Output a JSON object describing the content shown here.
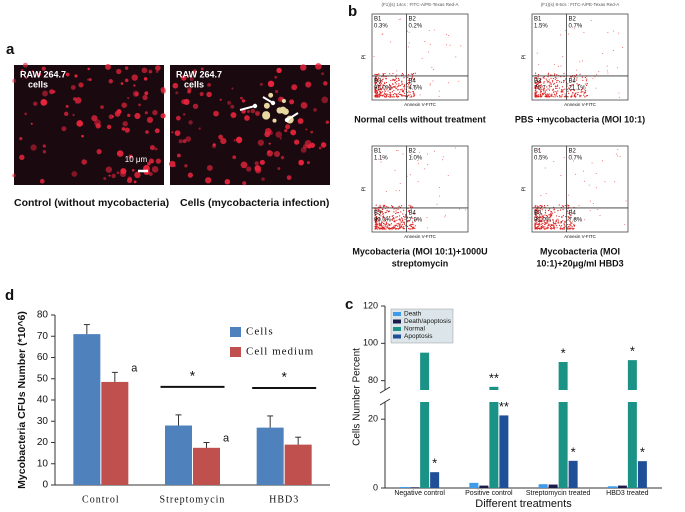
{
  "panel_a": {
    "letter": "a",
    "images": [
      {
        "label_lines": [
          "RAW 264.7",
          "cells"
        ],
        "scale_bar": "10 μm",
        "caption": "Control (without mycobacteria)"
      },
      {
        "label_lines": [
          "RAW 264.7",
          "cells"
        ],
        "caption": "Cells (mycobacteria  infection)"
      }
    ]
  },
  "panel_b": {
    "letter": "b",
    "plots": [
      {
        "header": "(F1)(s) 14cs : FITC-A/PE-Texas Red-A",
        "x_label": "Annexin V-FITC",
        "y_label": "PI",
        "quadrants": [
          {
            "name": "B1",
            "value": "0.3%"
          },
          {
            "name": "B2",
            "value": "0.2%"
          },
          {
            "name": "B3",
            "value": "95.0%"
          },
          {
            "name": "B4",
            "value": "4.6%"
          }
        ],
        "caption": [
          "Normal cells without treatment"
        ]
      },
      {
        "header": "(F1)(s) 8-5cs : FITC-A/PE-Texas Red-A",
        "x_label": "Annexin V-FITC",
        "y_label": "PI",
        "quadrants": [
          {
            "name": "B1",
            "value": "1.5%"
          },
          {
            "name": "B2",
            "value": "0.7%"
          },
          {
            "name": "B3",
            "value": "76.7"
          },
          {
            "name": "B4",
            "value": "21.1%"
          }
        ],
        "caption": [
          "PBS +mycobacteria (MOI 10:1)"
        ]
      },
      {
        "header": "",
        "x_label": "Annexin V-FITC",
        "y_label": "PI",
        "quadrants": [
          {
            "name": "B1",
            "value": "1.1%"
          },
          {
            "name": "B2",
            "value": "1.0%"
          },
          {
            "name": "B3",
            "value": "90.0%"
          },
          {
            "name": "B4",
            "value": "7.9%"
          }
        ],
        "caption": [
          "Mycobacteria (MOI 10:1)+1000U",
          "streptomycin"
        ]
      },
      {
        "header": "",
        "x_label": "Annexin V-FITC",
        "y_label": "PI",
        "quadrants": [
          {
            "name": "B1",
            "value": "0.5%"
          },
          {
            "name": "B2",
            "value": "0.7%"
          },
          {
            "name": "B3",
            "value": "91.0%"
          },
          {
            "name": "B4",
            "value": "7.8%"
          }
        ],
        "caption": [
          "Mycobacteria (MOI",
          "10:1)+20μg/ml  HBD3"
        ]
      }
    ]
  },
  "chart_data": [
    {
      "type": "bar",
      "label": "d",
      "y_label": "Mycobacteria CFUs Number (*10^6)",
      "categories": [
        "Control",
        "Streptomycin",
        "HBD3"
      ],
      "series": [
        {
          "name": "Cells",
          "color": "#4f81bd",
          "values": [
            71,
            28,
            27
          ],
          "errors": [
            4.5,
            5,
            5.5
          ]
        },
        {
          "name": "Cell medium",
          "color": "#c0504d",
          "values": [
            48.5,
            17.5,
            19
          ],
          "errors": [
            4.5,
            2.5,
            3.5
          ],
          "marks": [
            "a",
            "a",
            null
          ]
        }
      ],
      "group_marks": [
        null,
        "*",
        "*"
      ],
      "ylim": [
        0,
        80
      ],
      "yticks": [
        0,
        10,
        20,
        30,
        40,
        50,
        60,
        70,
        80
      ],
      "legend": "upper right"
    },
    {
      "type": "bar",
      "label": "c",
      "y_label": "Cells Number Percent",
      "x_label": "Different treatments",
      "categories": [
        "Negative control",
        "Positive control",
        "Streptomycin treated",
        "HBD3 treated"
      ],
      "series": [
        {
          "name": "Death",
          "color": "#3d9be9",
          "values": [
            0.3,
            1.5,
            1.1,
            0.5
          ]
        },
        {
          "name": "Death/apoptosis",
          "color": "#1c1c4c",
          "values": [
            0.2,
            0.7,
            1.0,
            0.7
          ]
        },
        {
          "name": "Normal",
          "color": "#1a9386",
          "values": [
            95.0,
            76.7,
            90.0,
            91.0
          ],
          "marks": [
            null,
            "**",
            "*",
            "*"
          ]
        },
        {
          "name": "Apoptosis",
          "color": "#1f4f96",
          "values": [
            4.6,
            21.1,
            7.9,
            7.8
          ],
          "marks": [
            "*",
            "**",
            "*",
            "*"
          ]
        }
      ],
      "ylim": [
        0,
        120
      ],
      "yticks": [
        0,
        20,
        80,
        100,
        120
      ],
      "axis_break": [
        25,
        75
      ],
      "legend": "upper left"
    }
  ]
}
